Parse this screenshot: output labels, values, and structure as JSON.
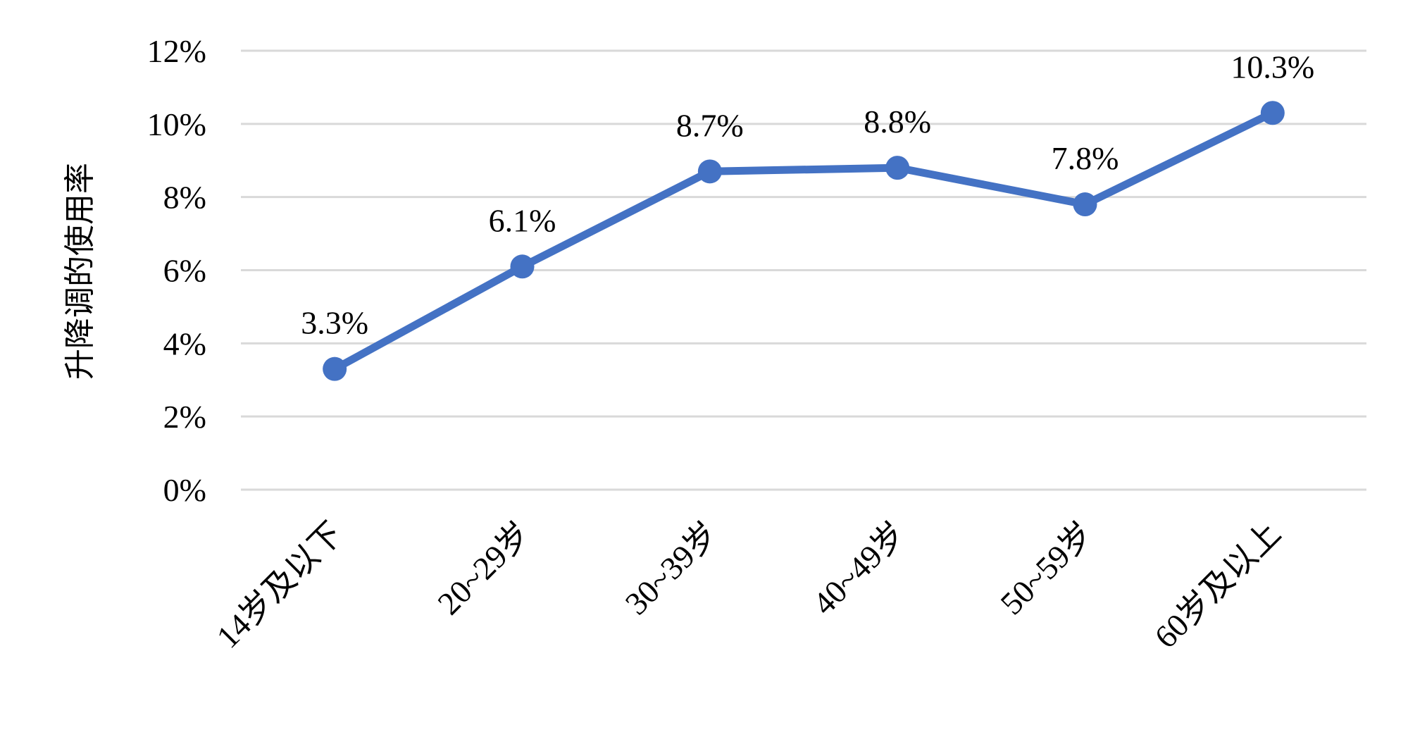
{
  "chart_data": {
    "type": "line",
    "title": "",
    "xlabel": "",
    "ylabel": "升降调的使用率",
    "categories": [
      "14岁及以下",
      "20~29岁",
      "30~39岁",
      "40~49岁",
      "50~59岁",
      "60岁及以上"
    ],
    "series": [
      {
        "values": [
          3.3,
          6.1,
          8.7,
          8.8,
          7.8,
          10.3
        ],
        "data_labels": [
          "3.3%",
          "6.1%",
          "8.7%",
          "8.8%",
          "7.8%",
          "10.3%"
        ],
        "color": "#4472c4"
      }
    ],
    "ylim": [
      0,
      12
    ],
    "yticks": [
      0,
      2,
      4,
      6,
      8,
      10,
      12
    ],
    "ytick_labels": [
      "0%",
      "2%",
      "4%",
      "6%",
      "8%",
      "10%",
      "12%"
    ],
    "grid": true,
    "legend": "none"
  }
}
